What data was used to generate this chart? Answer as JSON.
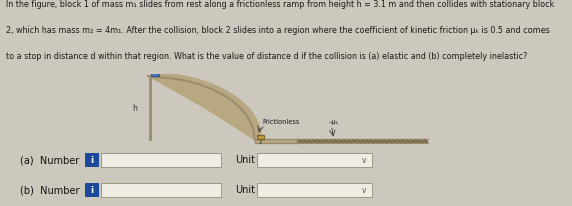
{
  "bg_color": "#cdc8be",
  "text_color": "#1a1a1a",
  "title_text_lines": [
    "In the figure, block 1 of mass m₁ slides from rest along a frictionless ramp from height h = 3.1 m and then collides with stationary block",
    "2, which has mass m₂ = 4m₁. After the collision, block 2 slides into a region where the coefficient of kinetic friction μₖ is 0.5 and comes",
    "to a stop in distance d within that region. What is the value of distance d if the collision is (a) elastic and (b) completely inelastic?"
  ],
  "label_a": "(a)  Number",
  "label_b": "(b)  Number",
  "unit_label": "Unit",
  "ramp_color": "#9c8b6e",
  "ramp_fill": "#b8a882",
  "floor_color": "#9c8b6e",
  "friction_fill": "#8a7a5a",
  "friction_hatch_color": "#6b5a3a",
  "block1_color": "#4a7ab5",
  "block1_edge": "#2a5a95",
  "block2_color": "#b8963a",
  "block2_edge": "#7a6020",
  "frictionless_label": "Frictionless",
  "mu_label": "–μₖ",
  "input_box_color": "#dbd5cc",
  "input_border_color": "#a09880",
  "blue_btn_color": "#1a4a99",
  "dropdown_color": "#dbd5cc",
  "white_box": "#f0ece4"
}
